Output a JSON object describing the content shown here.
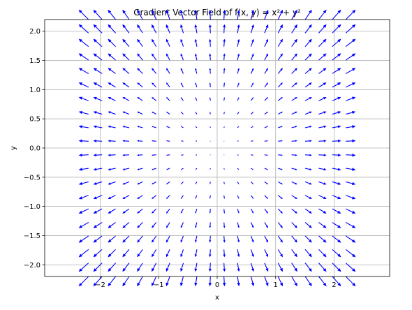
{
  "chart_data": {
    "type": "quiver",
    "title": "Gradient Vector Field of f(x, y) = x² + y²",
    "xlabel": "x",
    "ylabel": "y",
    "xlim": [
      -2.95,
      2.95
    ],
    "ylim": [
      -2.2,
      2.2
    ],
    "xticks": [
      -2,
      -1,
      0,
      1,
      2
    ],
    "yticks": [
      -2.0,
      -1.5,
      -1.0,
      -0.5,
      0.0,
      0.5,
      1.0,
      1.5,
      2.0
    ],
    "xtick_labels": [
      "−2",
      "−1",
      "0",
      "1",
      "2"
    ],
    "ytick_labels": [
      "−2.0",
      "−1.5",
      "−1.0",
      "−0.5",
      "0.0",
      "0.5",
      "1.0",
      "1.5",
      "2.0"
    ],
    "grid": true,
    "grid_x": [
      -2.2,
      2.2,
      20
    ],
    "grid_y": [
      -2.2,
      2.2,
      20
    ],
    "vector_field": {
      "u": "2*x",
      "v": "2*y",
      "normalized": false
    },
    "arrow_color": "#0000ff",
    "grid_color": "#b0b0b0"
  }
}
